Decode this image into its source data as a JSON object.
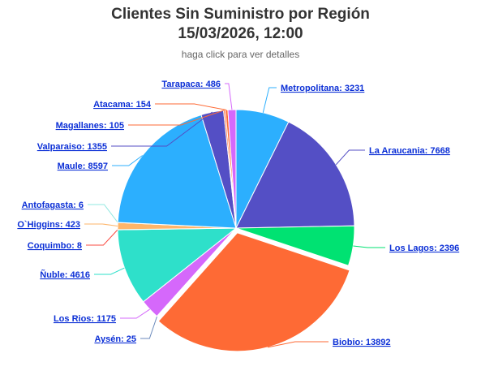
{
  "chart_data": {
    "type": "pie",
    "title_line1": "Clientes Sin Suministro por Región",
    "title_line2": "15/03/2026, 12:00",
    "subtitle": "haga click para ver detalles",
    "slices": [
      {
        "name": "Metropolitana",
        "value": 3231,
        "color": "#2caffe",
        "label": "Metropolitana: 3231"
      },
      {
        "name": "La Araucania",
        "value": 7668,
        "color": "#544fc5",
        "label": "La Araucania: 7668"
      },
      {
        "name": "Los Lagos",
        "value": 2396,
        "color": "#00e272",
        "label": "Los Lagos: 2396"
      },
      {
        "name": "Biobio",
        "value": 13892,
        "color": "#fe6a35",
        "label": "Biobio: 13892"
      },
      {
        "name": "Aysén",
        "value": 25,
        "color": "#6b8abc",
        "label": "Aysén: 25"
      },
      {
        "name": "Los Rios",
        "value": 1175,
        "color": "#d568fb",
        "label": "Los Rios: 1175"
      },
      {
        "name": "Ñuble",
        "value": 4616,
        "color": "#2ee0ca",
        "label": "Ñuble: 4616"
      },
      {
        "name": "Coquimbo",
        "value": 8,
        "color": "#fa4b42",
        "label": "Coquimbo: 8"
      },
      {
        "name": "O`Higgins",
        "value": 423,
        "color": "#feb56a",
        "label": "O`Higgins: 423"
      },
      {
        "name": "Antofagasta",
        "value": 6,
        "color": "#91e8e1",
        "label": "Antofagasta: 6"
      },
      {
        "name": "Maule",
        "value": 8597,
        "color": "#2caffe",
        "label": "Maule: 8597"
      },
      {
        "name": "Valparaiso",
        "value": 1355,
        "color": "#544fc5",
        "label": "Valparaiso: 1355"
      },
      {
        "name": "Magallanes",
        "value": 105,
        "color": "#fe6a35",
        "label": "Magallanes: 105"
      },
      {
        "name": "Atacama",
        "value": 154,
        "color": "#fe6a35",
        "label": "Atacama: 154"
      },
      {
        "name": "Tarapaca",
        "value": 486,
        "color": "#d568fb",
        "label": "Tarapaca: 486"
      }
    ]
  }
}
